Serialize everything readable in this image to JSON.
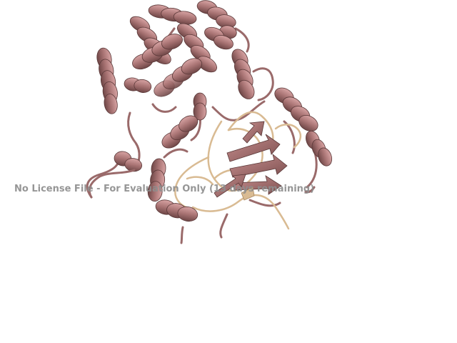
{
  "viewer": {
    "watermark_text": "No License File - For Evaluation Only (13 days remaining)",
    "background_color": "#ffffff"
  },
  "structure": {
    "representation": "cartoon",
    "chain_colors": {
      "main_chain": "#a97474",
      "main_chain_light": "#d8a4a4",
      "main_chain_dark": "#6e4646",
      "ligand_chain": "#d9bb93",
      "ligand_chain_dark": "#a8875f"
    }
  }
}
